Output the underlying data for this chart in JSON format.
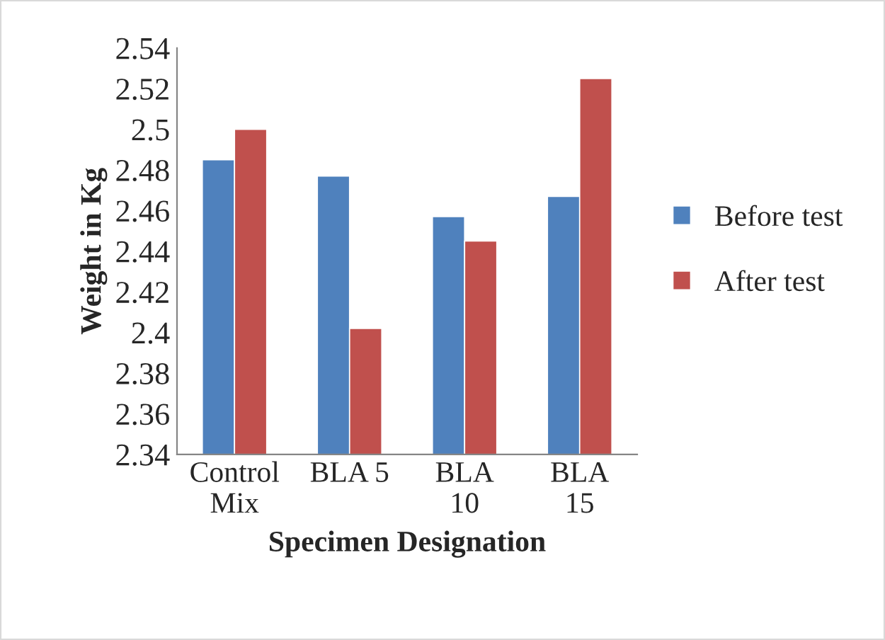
{
  "chart_data": {
    "type": "bar",
    "xlabel": "Specimen Designation",
    "ylabel": "Weight in Kg",
    "categories": [
      "Control Mix",
      "BLA 5",
      "BLA 10",
      "BLA 15"
    ],
    "series": [
      {
        "name": "Before test",
        "color": "#4f81bd",
        "values": [
          2.485,
          2.477,
          2.457,
          2.467
        ]
      },
      {
        "name": "After test",
        "color": "#c0504d",
        "values": [
          2.5,
          2.402,
          2.445,
          2.525
        ]
      }
    ],
    "ylim": [
      2.34,
      2.54
    ],
    "yticks": [
      2.34,
      2.36,
      2.38,
      2.4,
      2.42,
      2.44,
      2.46,
      2.48,
      2.5,
      2.52,
      2.54
    ],
    "grid": false,
    "legend": "right"
  }
}
